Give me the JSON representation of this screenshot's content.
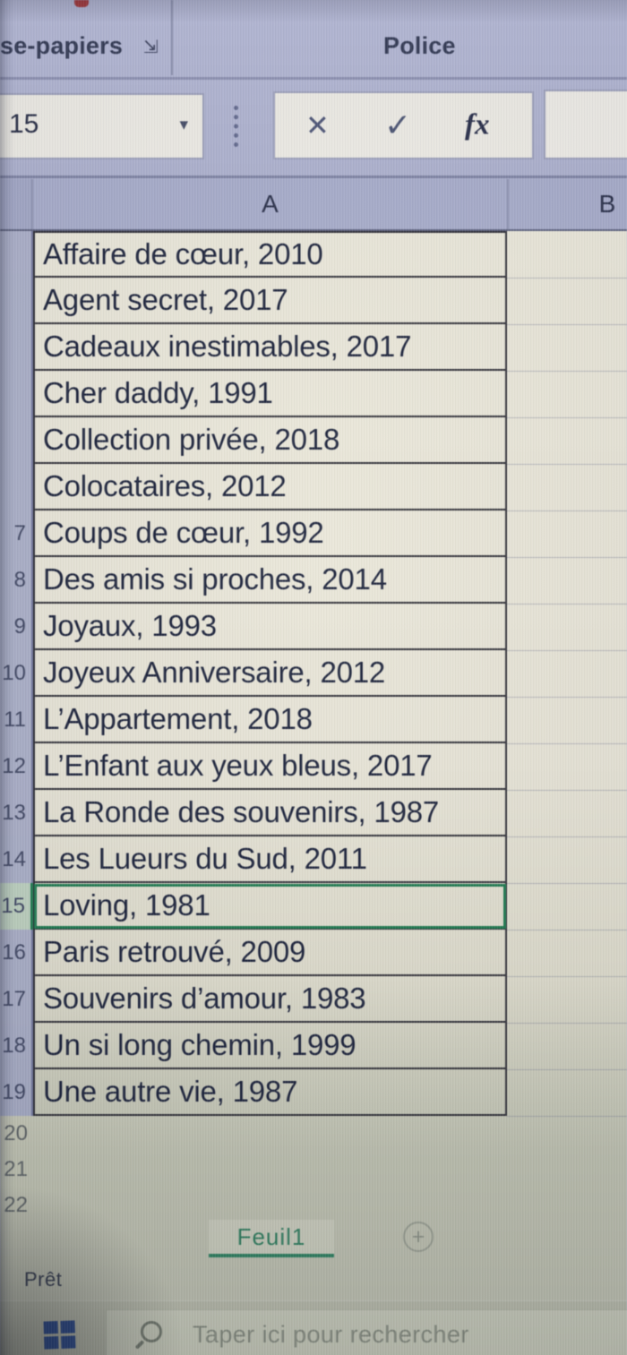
{
  "ribbon": {
    "clipboard_group_label": "se-papiers",
    "font_group_label": "Police",
    "dialog_launcher_icon": "⇲"
  },
  "formula_bar": {
    "name_box_value": "15",
    "dropdown_icon": "▾",
    "cancel_icon": "✕",
    "enter_icon": "✓",
    "function_icon": "fx",
    "formula_value": ""
  },
  "grid": {
    "column_headers": [
      "A",
      "B"
    ],
    "active_row_index": 14,
    "rows": [
      {
        "num": "",
        "title": "Affaire de cœur, 2010"
      },
      {
        "num": "",
        "title": "Agent secret, 2017"
      },
      {
        "num": "",
        "title": "Cadeaux inestimables, 2017"
      },
      {
        "num": "",
        "title": "Cher daddy, 1991"
      },
      {
        "num": "",
        "title": "Collection privée, 2018"
      },
      {
        "num": "",
        "title": "Colocataires, 2012"
      },
      {
        "num": "7",
        "title": "Coups de cœur, 1992"
      },
      {
        "num": "8",
        "title": "Des amis si proches, 2014"
      },
      {
        "num": "9",
        "title": "Joyaux, 1993"
      },
      {
        "num": "10",
        "title": "Joyeux Anniversaire, 2012"
      },
      {
        "num": "11",
        "title": "L’Appartement, 2018"
      },
      {
        "num": "12",
        "title": "L’Enfant aux yeux bleus, 2017"
      },
      {
        "num": "13",
        "title": "La Ronde des souvenirs, 1987"
      },
      {
        "num": "14",
        "title": "Les Lueurs du Sud, 2011"
      },
      {
        "num": "15",
        "title": "Loving, 1981"
      },
      {
        "num": "16",
        "title": "Paris retrouvé, 2009"
      },
      {
        "num": "17",
        "title": "Souvenirs d’amour, 1983"
      },
      {
        "num": "18",
        "title": "Un si long chemin, 1999"
      },
      {
        "num": "19",
        "title": "Une autre vie, 1987"
      },
      {
        "num": "20",
        "title": ""
      },
      {
        "num": "21",
        "title": ""
      },
      {
        "num": "22",
        "title": ""
      }
    ]
  },
  "sheet_tabs": {
    "active_tab": "Feuil1",
    "add_sheet_icon": "+"
  },
  "status_bar": {
    "ready_label": "Prêt"
  },
  "taskbar": {
    "search_placeholder": "Taper ici pour rechercher"
  },
  "colors": {
    "excel_green": "#1e7a4f",
    "ribbon_lavender": "#b3b7d4",
    "cell_cream": "#eae7d9",
    "windows_blue": "#2f4b85",
    "cell_text": "#1a2139"
  }
}
